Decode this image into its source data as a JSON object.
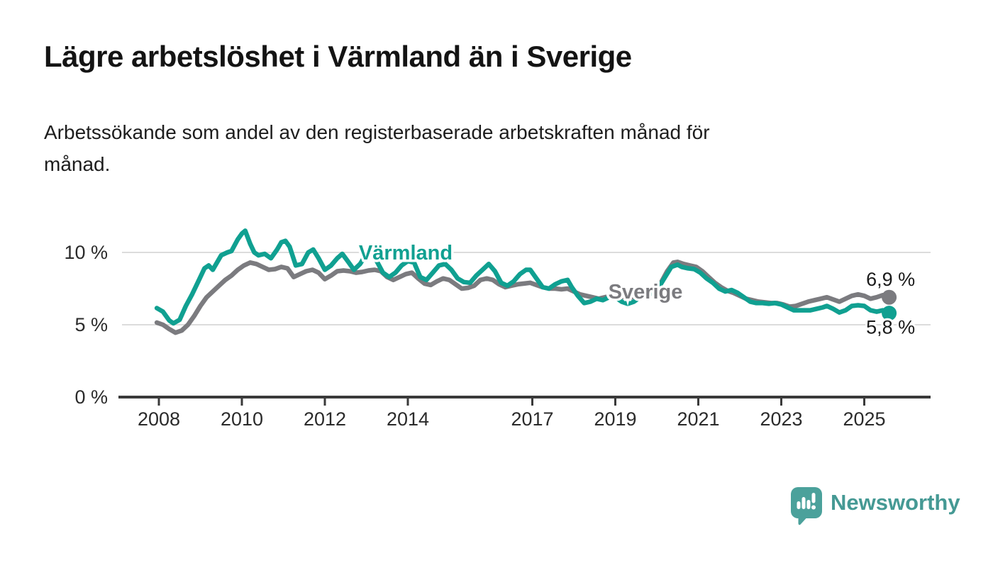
{
  "header": {
    "title": "Lägre arbetslöshet i Värmland än i Sverige",
    "subtitle": "Arbetssökande som andel av den registerbaserade arbetskraften månad för månad.",
    "subtitle_lines": [
      "Arbetssökande som andel av den registerbaserade arbetskraften månad för",
      "månad."
    ]
  },
  "branding": {
    "logo_text": "Newsworthy",
    "logo_icon": "bar-chart-speech-bubble-icon",
    "logo_color": "#4ba19b"
  },
  "colors": {
    "varmland_teal": "#10a091",
    "sverige_gray": "#7b7b7f",
    "axis_line": "#3a3a3a",
    "gridline": "#dcdcdc",
    "tick_label": "#2b2b2b",
    "annotation_text": "#1a1a1a",
    "background": "#ffffff"
  },
  "chart_data": {
    "type": "line",
    "title": "Lägre arbetslöshet i Värmland än i Sverige",
    "subtitle": "Arbetssökande som andel av den registerbaserade arbetskraften månad för månad.",
    "xlabel": "",
    "ylabel": "",
    "grid": "horizontal",
    "legend_position": "inline-labels",
    "ylim": [
      0,
      12
    ],
    "xlim": [
      2007.9,
      2026.6
    ],
    "yticks": [
      {
        "value": 0,
        "label": "0 %"
      },
      {
        "value": 5,
        "label": "5 %"
      },
      {
        "value": 10,
        "label": "10 %"
      }
    ],
    "xticks": [
      {
        "value": 2008,
        "label": "2008"
      },
      {
        "value": 2010,
        "label": "2010"
      },
      {
        "value": 2012,
        "label": "2012"
      },
      {
        "value": 2014,
        "label": "2014"
      },
      {
        "value": 2017,
        "label": "2017"
      },
      {
        "value": 2019,
        "label": "2019"
      },
      {
        "value": 2021,
        "label": "2021"
      },
      {
        "value": 2023,
        "label": "2023"
      },
      {
        "value": 2025,
        "label": "2025"
      }
    ],
    "series": [
      {
        "name": "Värmland",
        "slug": "varmland",
        "color": "#10a091",
        "end_value": 5.8,
        "end_value_label": "5,8 %",
        "points": [
          [
            2007.95,
            6.15
          ],
          [
            2008.1,
            5.9
          ],
          [
            2008.25,
            5.3
          ],
          [
            2008.35,
            5.1
          ],
          [
            2008.5,
            5.35
          ],
          [
            2008.65,
            6.3
          ],
          [
            2008.8,
            7.1
          ],
          [
            2008.95,
            8.0
          ],
          [
            2009.1,
            8.9
          ],
          [
            2009.2,
            9.1
          ],
          [
            2009.3,
            8.8
          ],
          [
            2009.5,
            9.8
          ],
          [
            2009.65,
            10.0
          ],
          [
            2009.75,
            10.1
          ],
          [
            2009.9,
            10.9
          ],
          [
            2010.0,
            11.3
          ],
          [
            2010.08,
            11.5
          ],
          [
            2010.2,
            10.6
          ],
          [
            2010.3,
            10.0
          ],
          [
            2010.4,
            9.8
          ],
          [
            2010.55,
            9.9
          ],
          [
            2010.7,
            9.6
          ],
          [
            2010.85,
            10.2
          ],
          [
            2010.95,
            10.7
          ],
          [
            2011.05,
            10.8
          ],
          [
            2011.15,
            10.4
          ],
          [
            2011.3,
            9.1
          ],
          [
            2011.45,
            9.2
          ],
          [
            2011.6,
            10.0
          ],
          [
            2011.72,
            10.2
          ],
          [
            2011.85,
            9.6
          ],
          [
            2012.0,
            8.8
          ],
          [
            2012.15,
            9.1
          ],
          [
            2012.3,
            9.6
          ],
          [
            2012.42,
            9.9
          ],
          [
            2012.55,
            9.4
          ],
          [
            2012.7,
            8.8
          ],
          [
            2012.85,
            9.2
          ],
          [
            2013.0,
            9.9
          ],
          [
            2013.1,
            10.0
          ],
          [
            2013.25,
            9.4
          ],
          [
            2013.4,
            8.6
          ],
          [
            2013.55,
            8.3
          ],
          [
            2013.7,
            8.6
          ],
          [
            2013.85,
            9.1
          ],
          [
            2014.0,
            9.4
          ],
          [
            2014.15,
            9.3
          ],
          [
            2014.3,
            8.3
          ],
          [
            2014.45,
            8.1
          ],
          [
            2014.6,
            8.6
          ],
          [
            2014.75,
            9.1
          ],
          [
            2014.9,
            9.2
          ],
          [
            2015.05,
            8.8
          ],
          [
            2015.2,
            8.2
          ],
          [
            2015.35,
            7.95
          ],
          [
            2015.5,
            7.9
          ],
          [
            2015.65,
            8.4
          ],
          [
            2015.8,
            8.8
          ],
          [
            2015.95,
            9.2
          ],
          [
            2016.1,
            8.7
          ],
          [
            2016.25,
            7.9
          ],
          [
            2016.4,
            7.7
          ],
          [
            2016.55,
            8.0
          ],
          [
            2016.7,
            8.5
          ],
          [
            2016.85,
            8.8
          ],
          [
            2016.95,
            8.8
          ],
          [
            2017.1,
            8.2
          ],
          [
            2017.25,
            7.6
          ],
          [
            2017.4,
            7.5
          ],
          [
            2017.55,
            7.8
          ],
          [
            2017.7,
            8.0
          ],
          [
            2017.85,
            8.1
          ],
          [
            2017.95,
            7.6
          ],
          [
            2018.1,
            7.0
          ],
          [
            2018.25,
            6.5
          ],
          [
            2018.4,
            6.6
          ],
          [
            2018.55,
            6.8
          ],
          [
            2018.7,
            6.7
          ],
          [
            2018.85,
            6.9
          ],
          [
            2019.0,
            6.9
          ],
          [
            2019.15,
            6.6
          ],
          [
            2019.3,
            6.45
          ],
          [
            2019.45,
            6.6
          ],
          [
            2019.6,
            6.9
          ],
          [
            2019.75,
            7.0
          ],
          [
            2019.9,
            7.2
          ],
          [
            2020.05,
            7.6
          ],
          [
            2020.2,
            8.3
          ],
          [
            2020.35,
            9.0
          ],
          [
            2020.5,
            9.15
          ],
          [
            2020.6,
            9.0
          ],
          [
            2020.75,
            8.9
          ],
          [
            2020.9,
            8.85
          ],
          [
            2021.05,
            8.6
          ],
          [
            2021.2,
            8.2
          ],
          [
            2021.35,
            7.9
          ],
          [
            2021.5,
            7.5
          ],
          [
            2021.65,
            7.3
          ],
          [
            2021.8,
            7.4
          ],
          [
            2021.95,
            7.2
          ],
          [
            2022.1,
            6.9
          ],
          [
            2022.25,
            6.6
          ],
          [
            2022.4,
            6.5
          ],
          [
            2022.55,
            6.5
          ],
          [
            2022.7,
            6.45
          ],
          [
            2022.85,
            6.5
          ],
          [
            2023.0,
            6.4
          ],
          [
            2023.15,
            6.2
          ],
          [
            2023.3,
            6.0
          ],
          [
            2023.5,
            6.0
          ],
          [
            2023.7,
            6.0
          ],
          [
            2023.85,
            6.1
          ],
          [
            2024.0,
            6.2
          ],
          [
            2024.1,
            6.3
          ],
          [
            2024.25,
            6.1
          ],
          [
            2024.4,
            5.85
          ],
          [
            2024.55,
            6.0
          ],
          [
            2024.7,
            6.3
          ],
          [
            2024.85,
            6.35
          ],
          [
            2025.0,
            6.3
          ],
          [
            2025.15,
            6.0
          ],
          [
            2025.3,
            5.9
          ],
          [
            2025.45,
            6.0
          ],
          [
            2025.6,
            5.8
          ]
        ]
      },
      {
        "name": "Sverige",
        "slug": "sverige",
        "color": "#7b7b7f",
        "end_value": 6.9,
        "end_value_label": "6,9 %",
        "points": [
          [
            2007.95,
            5.15
          ],
          [
            2008.1,
            5.0
          ],
          [
            2008.25,
            4.7
          ],
          [
            2008.4,
            4.45
          ],
          [
            2008.55,
            4.6
          ],
          [
            2008.7,
            5.0
          ],
          [
            2008.85,
            5.6
          ],
          [
            2009.0,
            6.3
          ],
          [
            2009.15,
            6.9
          ],
          [
            2009.3,
            7.3
          ],
          [
            2009.45,
            7.7
          ],
          [
            2009.6,
            8.1
          ],
          [
            2009.75,
            8.4
          ],
          [
            2009.9,
            8.8
          ],
          [
            2010.05,
            9.1
          ],
          [
            2010.2,
            9.3
          ],
          [
            2010.35,
            9.2
          ],
          [
            2010.5,
            9.0
          ],
          [
            2010.65,
            8.8
          ],
          [
            2010.8,
            8.85
          ],
          [
            2010.95,
            9.0
          ],
          [
            2011.1,
            8.9
          ],
          [
            2011.25,
            8.3
          ],
          [
            2011.4,
            8.5
          ],
          [
            2011.55,
            8.7
          ],
          [
            2011.7,
            8.8
          ],
          [
            2011.85,
            8.6
          ],
          [
            2012.0,
            8.15
          ],
          [
            2012.15,
            8.4
          ],
          [
            2012.3,
            8.7
          ],
          [
            2012.45,
            8.75
          ],
          [
            2012.6,
            8.7
          ],
          [
            2012.75,
            8.6
          ],
          [
            2012.9,
            8.65
          ],
          [
            2013.05,
            8.75
          ],
          [
            2013.2,
            8.8
          ],
          [
            2013.35,
            8.7
          ],
          [
            2013.5,
            8.3
          ],
          [
            2013.65,
            8.1
          ],
          [
            2013.8,
            8.3
          ],
          [
            2013.95,
            8.5
          ],
          [
            2014.1,
            8.6
          ],
          [
            2014.25,
            8.2
          ],
          [
            2014.4,
            7.85
          ],
          [
            2014.55,
            7.75
          ],
          [
            2014.7,
            8.0
          ],
          [
            2014.85,
            8.2
          ],
          [
            2015.0,
            8.1
          ],
          [
            2015.15,
            7.8
          ],
          [
            2015.3,
            7.5
          ],
          [
            2015.45,
            7.55
          ],
          [
            2015.6,
            7.7
          ],
          [
            2015.75,
            8.1
          ],
          [
            2015.9,
            8.2
          ],
          [
            2016.05,
            8.1
          ],
          [
            2016.2,
            7.8
          ],
          [
            2016.35,
            7.6
          ],
          [
            2016.5,
            7.7
          ],
          [
            2016.65,
            7.8
          ],
          [
            2016.8,
            7.85
          ],
          [
            2016.95,
            7.9
          ],
          [
            2017.1,
            7.75
          ],
          [
            2017.25,
            7.6
          ],
          [
            2017.4,
            7.5
          ],
          [
            2017.55,
            7.5
          ],
          [
            2017.7,
            7.45
          ],
          [
            2017.85,
            7.5
          ],
          [
            2018.0,
            7.3
          ],
          [
            2018.15,
            7.1
          ],
          [
            2018.3,
            7.0
          ],
          [
            2018.45,
            6.9
          ],
          [
            2018.6,
            6.8
          ],
          [
            2018.75,
            6.9
          ],
          [
            2018.9,
            7.0
          ],
          [
            2019.05,
            7.0
          ],
          [
            2019.2,
            6.9
          ],
          [
            2019.35,
            6.85
          ],
          [
            2019.5,
            7.0
          ],
          [
            2019.65,
            7.1
          ],
          [
            2019.8,
            7.2
          ],
          [
            2019.95,
            7.4
          ],
          [
            2020.1,
            7.9
          ],
          [
            2020.25,
            8.7
          ],
          [
            2020.4,
            9.3
          ],
          [
            2020.5,
            9.35
          ],
          [
            2020.65,
            9.2
          ],
          [
            2020.8,
            9.1
          ],
          [
            2020.95,
            9.0
          ],
          [
            2021.1,
            8.7
          ],
          [
            2021.25,
            8.3
          ],
          [
            2021.4,
            7.9
          ],
          [
            2021.55,
            7.6
          ],
          [
            2021.7,
            7.35
          ],
          [
            2021.85,
            7.2
          ],
          [
            2022.0,
            7.0
          ],
          [
            2022.15,
            6.8
          ],
          [
            2022.3,
            6.7
          ],
          [
            2022.45,
            6.6
          ],
          [
            2022.6,
            6.55
          ],
          [
            2022.75,
            6.5
          ],
          [
            2022.9,
            6.5
          ],
          [
            2023.05,
            6.4
          ],
          [
            2023.2,
            6.25
          ],
          [
            2023.35,
            6.3
          ],
          [
            2023.5,
            6.45
          ],
          [
            2023.65,
            6.6
          ],
          [
            2023.8,
            6.7
          ],
          [
            2023.95,
            6.8
          ],
          [
            2024.1,
            6.9
          ],
          [
            2024.25,
            6.75
          ],
          [
            2024.4,
            6.6
          ],
          [
            2024.55,
            6.8
          ],
          [
            2024.7,
            7.0
          ],
          [
            2024.85,
            7.1
          ],
          [
            2025.0,
            7.0
          ],
          [
            2025.15,
            6.8
          ],
          [
            2025.3,
            6.9
          ],
          [
            2025.45,
            7.05
          ],
          [
            2025.6,
            6.9
          ]
        ]
      }
    ]
  }
}
